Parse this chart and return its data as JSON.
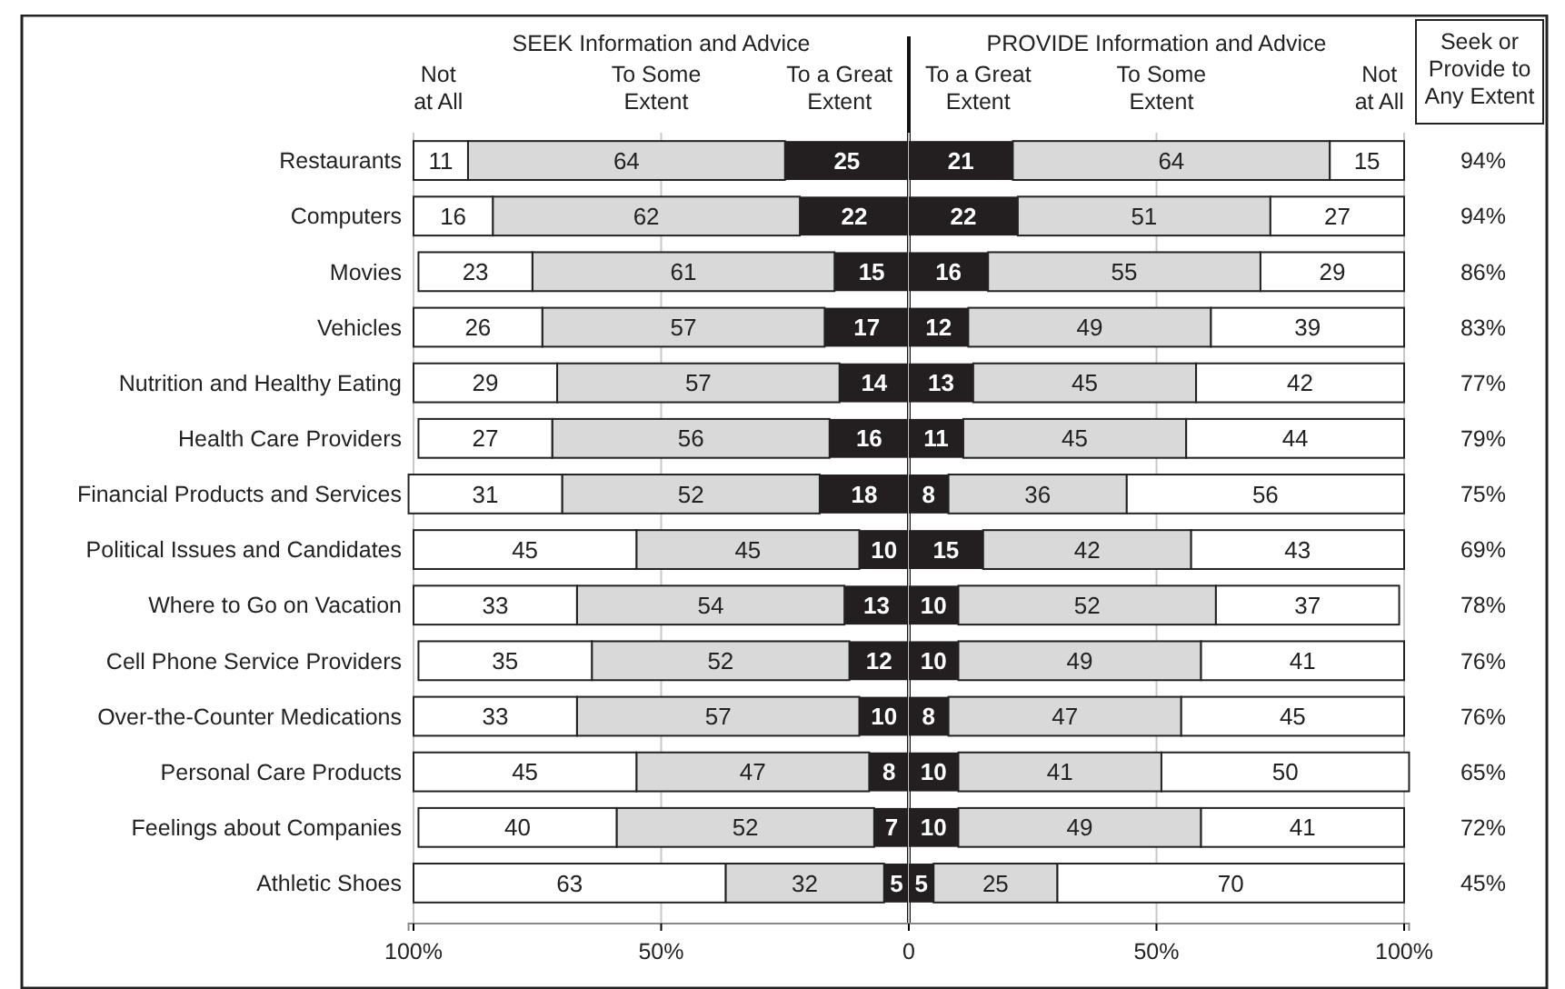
{
  "chart_data": [
    {
      "type": "bar",
      "orientation": "horizontal",
      "stacked": true,
      "title": "SEEK Information and Advice",
      "categories": [
        "Restaurants",
        "Computers",
        "Movies",
        "Vehicles",
        "Nutrition and Healthy Eating",
        "Health Care Providers",
        "Financial Products and Services",
        "Political Issues and Candidates",
        "Where to Go on Vacation",
        "Cell Phone Service Providers",
        "Over-the-Counter Medications",
        "Personal Care Products",
        "Feelings about Companies",
        "Athletic Shoes"
      ],
      "series": [
        {
          "name": "To a Great Extent",
          "color": "#231f20",
          "values": [
            25,
            22,
            15,
            17,
            14,
            16,
            18,
            10,
            13,
            12,
            10,
            8,
            7,
            5
          ]
        },
        {
          "name": "To Some Extent",
          "color": "#d9d9d9",
          "values": [
            64,
            62,
            61,
            57,
            57,
            56,
            52,
            45,
            54,
            52,
            57,
            47,
            52,
            32
          ]
        },
        {
          "name": "Not at All",
          "color": "#ffffff",
          "values": [
            11,
            16,
            23,
            26,
            29,
            27,
            31,
            45,
            33,
            35,
            33,
            45,
            40,
            63
          ]
        }
      ],
      "xlim": [
        101,
        0
      ],
      "xticks": [
        {
          "value": 100,
          "label": "100%"
        },
        {
          "value": 50,
          "label": "50%"
        },
        0
      ],
      "data_labels": true,
      "grid": "x",
      "legend": "top",
      "ref_lines": [
        {
          "axis": "x",
          "value": 0
        }
      ]
    },
    {
      "type": "bar",
      "orientation": "horizontal",
      "stacked": true,
      "title": "PROVIDE Information and Advice",
      "categories": [
        "Restaurants",
        "Computers",
        "Movies",
        "Vehicles",
        "Nutrition and Healthy Eating",
        "Health Care Providers",
        "Financial Products and Services",
        "Political Issues and Candidates",
        "Where to Go on Vacation",
        "Cell Phone Service Providers",
        "Over-the-Counter Medications",
        "Personal Care Products",
        "Feelings about Companies",
        "Athletic Shoes"
      ],
      "series": [
        {
          "name": "To a Great Extent",
          "color": "#231f20",
          "values": [
            21,
            22,
            16,
            12,
            13,
            11,
            8,
            15,
            10,
            10,
            8,
            10,
            10,
            5
          ]
        },
        {
          "name": "To Some Extent",
          "color": "#d9d9d9",
          "values": [
            64,
            51,
            55,
            49,
            45,
            45,
            36,
            42,
            52,
            49,
            47,
            41,
            49,
            25
          ]
        },
        {
          "name": "Not at All",
          "color": "#ffffff",
          "values": [
            15,
            27,
            29,
            39,
            42,
            44,
            56,
            43,
            37,
            41,
            45,
            50,
            41,
            70
          ]
        }
      ],
      "xlim": [
        0,
        101
      ],
      "xticks": [
        {
          "value": 0,
          "label": null
        },
        {
          "value": 50,
          "label": "50%"
        },
        {
          "value": 100,
          "label": "100%"
        }
      ],
      "data_labels": true,
      "grid": "x",
      "legend": "top",
      "tick_labels": "x"
    },
    {
      "type": "other",
      "title": "Seek or Provide to Any Extent",
      "annotations": [
        "94%",
        "94%",
        "86%",
        "83%",
        "77%",
        "79%",
        "75%",
        "69%",
        "78%",
        "76%",
        "76%",
        "65%",
        "72%",
        "45%"
      ]
    }
  ]
}
